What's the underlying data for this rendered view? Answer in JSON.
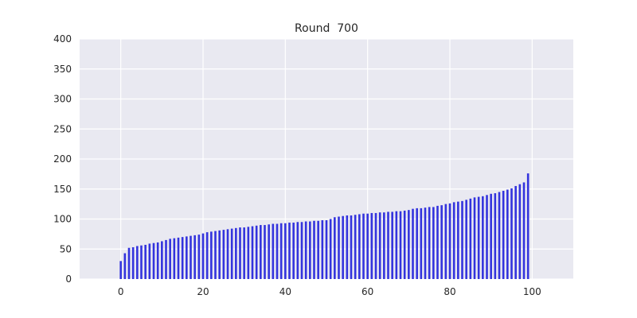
{
  "chart_data": {
    "type": "bar",
    "title": "Round  700",
    "xlabel": "",
    "ylabel": "",
    "xlim": [
      -10,
      110
    ],
    "ylim": [
      0,
      400
    ],
    "x_ticks": [
      0,
      20,
      40,
      60,
      80,
      100
    ],
    "y_ticks": [
      0,
      50,
      100,
      150,
      200,
      250,
      300,
      350,
      400
    ],
    "grid": true,
    "colors": {
      "bar": "#3333dd",
      "plot_bg": "#e9e9f1",
      "grid": "#ffffff"
    },
    "x": [
      0,
      1,
      2,
      3,
      4,
      5,
      6,
      7,
      8,
      9,
      10,
      11,
      12,
      13,
      14,
      15,
      16,
      17,
      18,
      19,
      20,
      21,
      22,
      23,
      24,
      25,
      26,
      27,
      28,
      29,
      30,
      31,
      32,
      33,
      34,
      35,
      36,
      37,
      38,
      39,
      40,
      41,
      42,
      43,
      44,
      45,
      46,
      47,
      48,
      49,
      50,
      51,
      52,
      53,
      54,
      55,
      56,
      57,
      58,
      59,
      60,
      61,
      62,
      63,
      64,
      65,
      66,
      67,
      68,
      69,
      70,
      71,
      72,
      73,
      74,
      75,
      76,
      77,
      78,
      79,
      80,
      81,
      82,
      83,
      84,
      85,
      86,
      87,
      88,
      89,
      90,
      91,
      92,
      93,
      94,
      95,
      96,
      97,
      98,
      99
    ],
    "values": [
      30,
      43,
      52,
      53,
      55,
      56,
      57,
      59,
      60,
      61,
      63,
      65,
      67,
      68,
      69,
      70,
      71,
      72,
      73,
      74,
      76,
      78,
      79,
      80,
      81,
      82,
      83,
      84,
      85,
      86,
      86,
      87,
      88,
      89,
      90,
      90,
      91,
      92,
      92,
      93,
      93,
      94,
      94,
      95,
      95,
      96,
      96,
      97,
      97,
      98,
      98,
      100,
      103,
      104,
      105,
      106,
      106,
      107,
      108,
      109,
      109,
      110,
      110,
      111,
      111,
      112,
      112,
      113,
      113,
      114,
      115,
      117,
      118,
      118,
      119,
      120,
      120,
      122,
      123,
      125,
      126,
      128,
      129,
      130,
      132,
      134,
      136,
      137,
      138,
      140,
      142,
      143,
      145,
      147,
      149,
      151,
      155,
      158,
      161,
      176
    ]
  }
}
